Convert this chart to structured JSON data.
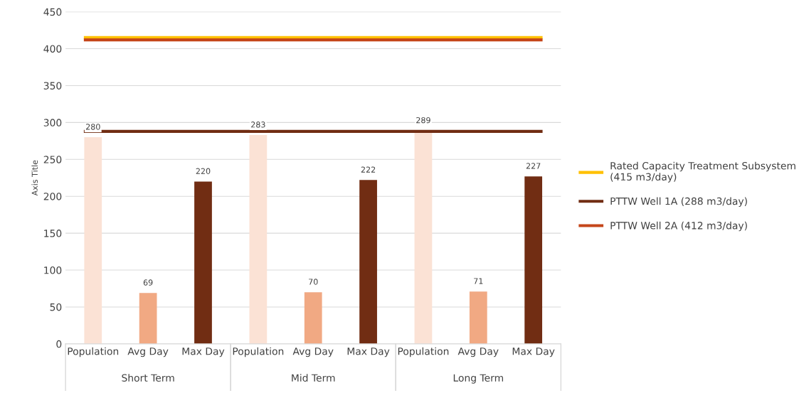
{
  "chart_data": {
    "type": "bar",
    "ylabel": "Axis Title",
    "categories": [
      "Population",
      "Avg Day",
      "Max Day",
      "Population",
      "Avg Day",
      "Max Day",
      "Population",
      "Avg Day",
      "Max Day"
    ],
    "values": [
      280,
      69,
      220,
      283,
      70,
      222,
      289,
      71,
      227
    ],
    "colors": [
      "#fbe2d5",
      "#f1a983",
      "#712d13",
      "#fbe2d5",
      "#f1a983",
      "#712d13",
      "#fbe2d5",
      "#f1a983",
      "#712d13"
    ],
    "data_labels": true,
    "annotations": [
      "Short Term",
      "Mid Term",
      "Long Term"
    ],
    "ref_lines": [
      {
        "axis": "y",
        "value": 415,
        "label": "Rated Capacity Treatment Subsystem (415 m3/day)",
        "color": "#ffc000"
      },
      {
        "axis": "y",
        "value": 288,
        "label": "PTTW Well 1A (288 m3/day)",
        "color": "#712d13"
      },
      {
        "axis": "y",
        "value": 412,
        "label": "PTTW Well 2A (412 m3/day)",
        "color": "#c5461a"
      }
    ],
    "ylim": [
      0,
      450
    ],
    "yticks": [
      0,
      50,
      100,
      150,
      200,
      250,
      300,
      350,
      400,
      450
    ],
    "grid": "y",
    "legend": "right"
  }
}
